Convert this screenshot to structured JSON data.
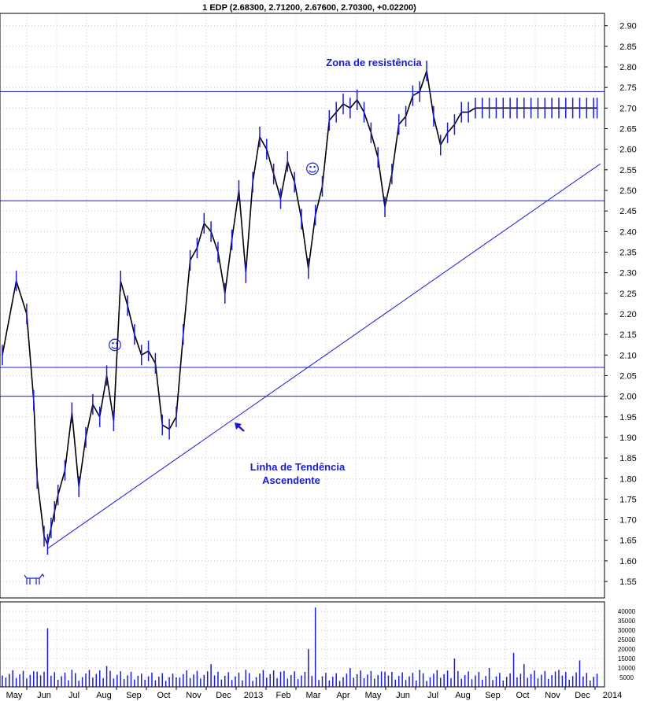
{
  "chart_data": {
    "type": "line",
    "title": "1 EDP (2.68300, 2.71200, 2.67600, 2.70300, +0.02200)",
    "price_axis": {
      "ylim": [
        1.51,
        2.93
      ],
      "ticks": [
        "1.55",
        "1.60",
        "1.65",
        "1.70",
        "1.75",
        "1.80",
        "1.85",
        "1.90",
        "1.95",
        "2.00",
        "2.05",
        "2.10",
        "2.15",
        "2.20",
        "2.25",
        "2.30",
        "2.35",
        "2.40",
        "2.45",
        "2.50",
        "2.55",
        "2.60",
        "2.65",
        "2.70",
        "2.75",
        "2.80",
        "2.85",
        "2.90"
      ]
    },
    "volume_axis": {
      "ylim": [
        0,
        45000
      ],
      "ticks": [
        "5000",
        "10000",
        "15000",
        "20000",
        "25000",
        "30000",
        "35000",
        "40000"
      ]
    },
    "x_axis": {
      "labels": [
        "May",
        "Jun",
        "Jul",
        "Aug",
        "Sep",
        "Oct",
        "Nov",
        "Dec",
        "2013",
        "Feb",
        "Mar",
        "Apr",
        "May",
        "Jun",
        "Jul",
        "Aug",
        "Sep",
        "Oct",
        "Nov",
        "Dec",
        "2014"
      ],
      "n_days": 172
    },
    "series": [
      {
        "type": "close",
        "x": [
          0,
          4,
          7,
          9,
          10,
          12,
          13,
          14,
          15,
          16,
          18,
          20,
          22,
          24,
          26,
          28,
          30,
          32,
          34,
          36,
          38,
          40,
          42,
          44,
          46,
          48,
          50,
          52,
          54,
          56,
          58,
          60,
          62,
          64,
          66,
          68,
          70,
          72,
          74,
          76,
          78,
          80,
          82,
          84,
          86,
          88,
          90,
          92,
          94,
          96,
          98,
          100,
          102,
          104,
          106,
          108,
          110,
          112,
          114,
          116,
          118,
          120,
          122,
          124,
          126,
          128,
          130,
          132,
          134,
          136,
          138,
          140,
          142,
          144,
          146,
          148,
          150,
          152,
          154,
          156,
          158,
          160,
          162,
          164,
          166,
          168,
          170,
          171
        ],
        "values": [
          2.1,
          2.28,
          2.2,
          1.99,
          1.8,
          1.66,
          1.64,
          1.68,
          1.72,
          1.76,
          1.82,
          1.96,
          1.78,
          1.9,
          1.98,
          1.95,
          2.05,
          1.94,
          2.28,
          2.22,
          2.15,
          2.1,
          2.11,
          2.08,
          1.93,
          1.92,
          1.95,
          2.15,
          2.33,
          2.36,
          2.42,
          2.4,
          2.35,
          2.25,
          2.38,
          2.5,
          2.3,
          2.52,
          2.63,
          2.6,
          2.54,
          2.48,
          2.57,
          2.52,
          2.43,
          2.31,
          2.44,
          2.51,
          2.67,
          2.69,
          2.71,
          2.7,
          2.72,
          2.69,
          2.64,
          2.58,
          2.46,
          2.54,
          2.66,
          2.68,
          2.73,
          2.74,
          2.79,
          2.68,
          2.61,
          2.64,
          2.66,
          2.69,
          2.69,
          2.7,
          2.7,
          2.7,
          2.7,
          2.7,
          2.7,
          2.7,
          2.7,
          2.7,
          2.7,
          2.7,
          2.7,
          2.7,
          2.7,
          2.7,
          2.7,
          2.7,
          2.7,
          2.7
        ]
      }
    ],
    "volume": {
      "x": [
        0,
        10,
        13,
        20,
        30,
        40,
        50,
        60,
        70,
        80,
        88,
        90,
        100,
        110,
        120,
        130,
        140,
        147,
        150,
        160,
        166,
        171
      ],
      "values": [
        6000,
        8000,
        31000,
        9000,
        11000,
        7000,
        5000,
        12000,
        9000,
        8000,
        20000,
        42000,
        10000,
        8000,
        9000,
        15000,
        10000,
        18000,
        12000,
        9000,
        14000,
        7000
      ]
    },
    "levels": [
      2.74,
      2.475,
      2.07,
      2.0
    ],
    "trendline": {
      "x": [
        13,
        172
      ],
      "values": [
        1.63,
        2.565
      ]
    },
    "annotations": {
      "resistance_label": "Zona de resistência",
      "trend_label_line1": "Linha de Tendência",
      "trend_label_line2": "Ascendente",
      "smiley": "☺"
    },
    "colors": {
      "price": "#1a1ad8",
      "grid": "#c8c8c8",
      "axis": "#000000",
      "volume": "#1a1ad8",
      "line": "#1a1ad8"
    }
  }
}
